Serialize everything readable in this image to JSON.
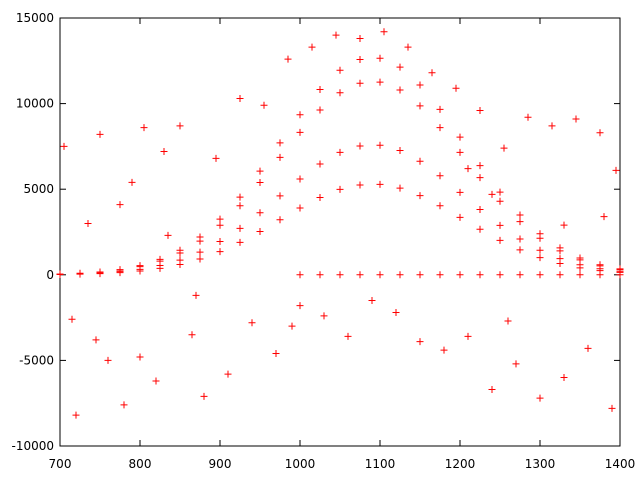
{
  "chart_data": {
    "type": "scatter",
    "color": "#ff0000",
    "marker": "plus",
    "xlim": [
      700,
      1400
    ],
    "xticks": [
      700,
      800,
      900,
      1000,
      1100,
      1200,
      1300,
      1400
    ],
    "ylim": [
      -10000,
      15000
    ],
    "yticks": [
      -10000,
      -5000,
      0,
      5000,
      10000,
      15000
    ],
    "x": [
      700,
      725,
      750,
      775,
      800,
      825,
      850,
      875,
      900,
      925,
      950,
      975,
      1000,
      1025,
      1050,
      1075,
      1100,
      1125,
      1150,
      1175,
      1200,
      1225,
      1250,
      1275,
      1300,
      1325,
      1350,
      1375,
      1400,
      700,
      725,
      750,
      775,
      800,
      825,
      850,
      875,
      900,
      925,
      950,
      975,
      1000,
      1025,
      1050,
      1075,
      1100,
      1125,
      1150,
      1175,
      1200,
      1225,
      1250,
      1275,
      1300,
      1325,
      1350,
      1375,
      1400,
      700,
      725,
      750,
      775,
      800,
      825,
      850,
      875,
      900,
      925,
      950,
      975,
      1000,
      1025,
      1050,
      1075,
      1100,
      1125,
      1150,
      1175,
      1200,
      1225,
      1250,
      1275,
      1300,
      1325,
      1350,
      1375,
      1400,
      700,
      725,
      750,
      775,
      800,
      825,
      850,
      875,
      900,
      925,
      950,
      975,
      1000,
      1025,
      1050,
      1075,
      1100,
      1125,
      1150,
      1175,
      1200,
      1225,
      1250,
      1275,
      1300,
      1325,
      1350,
      1375,
      1400,
      1000,
      1025,
      1050,
      1075,
      1100,
      1125,
      1150,
      1175,
      1200,
      1225,
      1250,
      1275,
      1300,
      1325,
      1350,
      1375,
      1400,
      705,
      720,
      735,
      750,
      760,
      780,
      790,
      805,
      820,
      835,
      850,
      865,
      880,
      895,
      910,
      925,
      940,
      955,
      970,
      985,
      1000,
      1015,
      1030,
      1045,
      1060,
      1075,
      1090,
      1105,
      1120,
      1135,
      1150,
      1165,
      1180,
      1195,
      1210,
      1225,
      1240,
      1255,
      1270,
      1285,
      1300,
      1315,
      1330,
      1345,
      1360,
      1375,
      1390,
      1395,
      715,
      745,
      775,
      800,
      830,
      870,
      990,
      1210,
      1260,
      1330,
      1380,
      1240
    ],
    "values": [
      38,
      89,
      165,
      305,
      533,
      902,
      1435,
      2210,
      3251,
      4534,
      6058,
      7709,
      9347,
      10820,
      11951,
      12573,
      12649,
      12129,
      11087,
      9665,
      8039,
      6375,
      4826,
      3493,
      2400,
      1575,
      978,
      584,
      343,
      34,
      79,
      147,
      271,
      475,
      802,
      1277,
      1966,
      2893,
      4034,
      5390,
      6859,
      8317,
      9628,
      10633,
      11187,
      11255,
      10792,
      9865,
      8599,
      7153,
      5673,
      4294,
      3108,
      2136,
      1401,
      870,
      520,
      305,
      23,
      53,
      99,
      182,
      319,
      540,
      859,
      1322,
      1946,
      2713,
      3625,
      4613,
      5594,
      6475,
      7152,
      7524,
      7570,
      7258,
      6635,
      5784,
      4811,
      3815,
      2888,
      2090,
      1436,
      942,
      585,
      350,
      205,
      16,
      37,
      69,
      127,
      223,
      376,
      599,
      922,
      1357,
      1892,
      2528,
      3217,
      3901,
      4516,
      4987,
      5247,
      5279,
      5062,
      4627,
      4033,
      3355,
      2661,
      2014,
      1458,
      1002,
      657,
      408,
      244,
      143,
      0,
      0,
      0,
      0,
      0,
      0,
      0,
      0,
      0,
      0,
      0,
      0,
      0,
      0,
      0,
      0,
      0,
      7500,
      -8200,
      3000,
      8200,
      -5000,
      -7600,
      5400,
      8600,
      -6200,
      2300,
      8700,
      -3500,
      -7100,
      6800,
      -5800,
      10300,
      -2800,
      9900,
      -4600,
      12600,
      -1800,
      13300,
      -2400,
      14000,
      -3600,
      13800,
      -1500,
      14200,
      -2200,
      13300,
      -3900,
      11800,
      -4400,
      10900,
      -3600,
      9600,
      -6700,
      7400,
      -5200,
      9200,
      -7200,
      8700,
      -6000,
      9100,
      -4300,
      8300,
      -7800,
      6100,
      -2600,
      -3800,
      4100,
      -4800,
      7200,
      -1200,
      -3000,
      6200,
      -2700,
      2900,
      3400,
      4700
    ]
  }
}
